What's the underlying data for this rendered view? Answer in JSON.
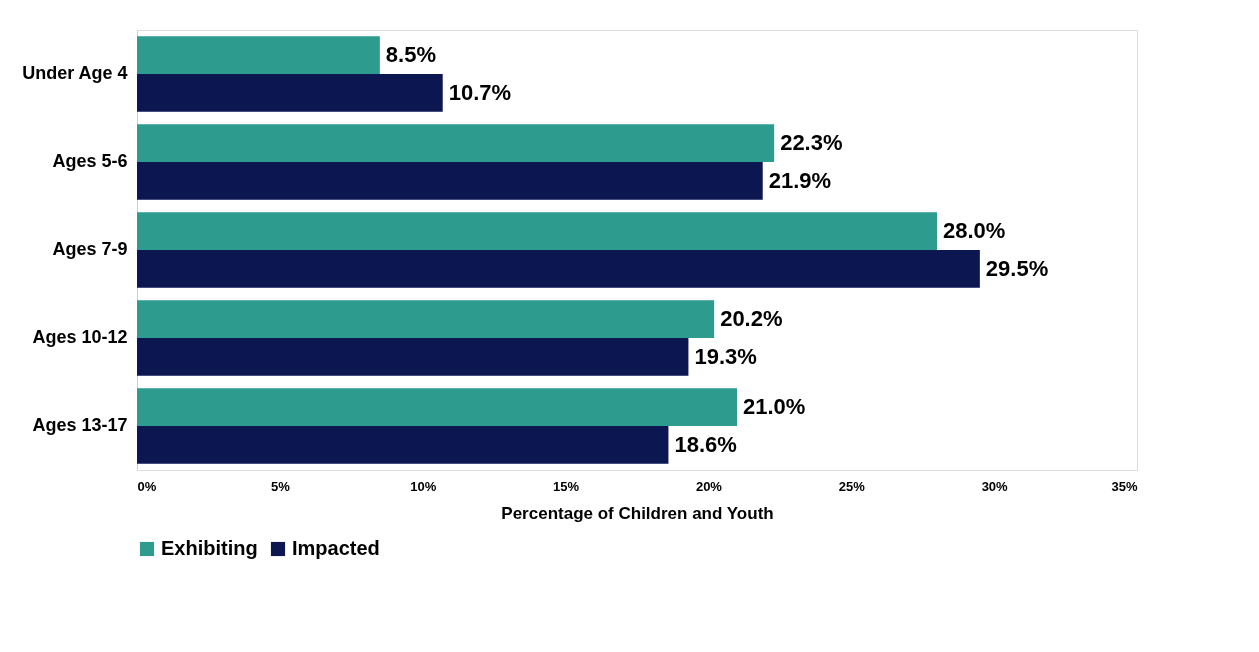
{
  "chart_data": {
    "type": "bar",
    "orientation": "horizontal",
    "xlabel": "Percentage of Children and Youth",
    "categories": [
      "Under Age 4",
      "Ages 5-6",
      "Ages 7-9",
      "Ages 10-12",
      "Ages 13-17"
    ],
    "series": [
      {
        "name": "Exhibiting",
        "color": "#2e9b8f",
        "values": [
          8.5,
          22.3,
          28.0,
          20.2,
          21.0
        ],
        "value_labels": [
          "8.5%",
          "22.3%",
          "28.0%",
          "20.2%",
          "21.0%"
        ]
      },
      {
        "name": "Impacted",
        "color": "#0c1650",
        "values": [
          10.7,
          21.9,
          29.5,
          19.3,
          18.6
        ],
        "value_labels": [
          "10.7%",
          "21.9%",
          "29.5%",
          "19.3%",
          "18.6%"
        ]
      }
    ],
    "xlim": [
      0,
      35
    ],
    "xticks": [
      {
        "value": 0,
        "label": "0%"
      },
      {
        "value": 5,
        "label": "5%"
      },
      {
        "value": 10,
        "label": "10%"
      },
      {
        "value": 15,
        "label": "15%"
      },
      {
        "value": 20,
        "label": "20%"
      },
      {
        "value": 25,
        "label": "25%"
      },
      {
        "value": 30,
        "label": "30%"
      },
      {
        "value": 35,
        "label": "35%"
      }
    ],
    "grid": false,
    "legend": "bottom"
  }
}
